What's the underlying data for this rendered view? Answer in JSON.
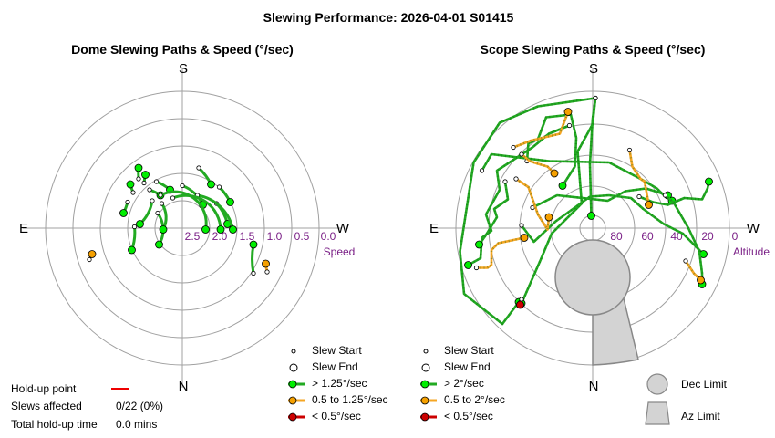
{
  "title": "Slewing Performance: 2026-04-01 S01415",
  "colors": {
    "fast": "#22aa22",
    "fast_marker": "#00ee00",
    "medium": "#f5a623",
    "medium_marker": "#f5a000",
    "slow": "#cc0000",
    "slow_marker": "#cc0000",
    "holdup": "#ee0000",
    "limit_fill": "#d3d3d3",
    "limit_stroke": "#888888",
    "ring": "#a0a0a0",
    "axis_label": "#7a1f86"
  },
  "stats": {
    "holdup_label": "Hold-up point",
    "slews_affected_label": "Slews affected",
    "slews_affected_value": "0/22 (0%)",
    "total_holdup_label": "Total hold-up time",
    "total_holdup_value": "0.0 mins"
  },
  "chart_data": [
    {
      "type": "polar",
      "title": "Dome Slewing Paths & Speed (°/sec)",
      "directions": {
        "top": "S",
        "bottom": "N",
        "left": "E",
        "right": "W"
      },
      "radial_axis": "Speed",
      "radial_ticks": [
        "2.5",
        "2.0",
        "1.5",
        "1.0",
        "0.5",
        "0.0"
      ],
      "legend": [
        {
          "label": "Slew Start",
          "kind": "start"
        },
        {
          "label": "Slew End",
          "kind": "end"
        },
        {
          "label": "> 1.25°/sec",
          "kind": "fast"
        },
        {
          "label": "0.5 to 1.25°/sec",
          "kind": "medium"
        },
        {
          "label": "< 0.5°/sec",
          "kind": "slow"
        }
      ],
      "slews": [
        {
          "speed": "fast",
          "start": [
            -0.36,
            0.26
          ],
          "end": [
            -0.38,
            0.32
          ]
        },
        {
          "speed": "fast",
          "start": [
            -0.28,
            0.33
          ],
          "end": [
            -0.27,
            0.39
          ]
        },
        {
          "speed": "fast",
          "start": [
            -0.24,
            0.28
          ],
          "end": [
            -0.16,
            0.24
          ]
        },
        {
          "speed": "fast",
          "start": [
            -0.32,
            0.36
          ],
          "end": [
            -0.32,
            0.44
          ]
        },
        {
          "speed": "fast",
          "start": [
            -0.19,
            0.34
          ],
          "end": [
            -0.09,
            0.28
          ]
        },
        {
          "speed": "fast",
          "start": [
            0.12,
            0.44
          ],
          "end": [
            0.21,
            0.32
          ]
        },
        {
          "speed": "fast",
          "start": [
            0.27,
            0.3
          ],
          "end": [
            0.35,
            0.19
          ]
        },
        {
          "speed": "fast",
          "start": [
            0.0,
            0.31
          ],
          "end": [
            0.15,
            0.17
          ]
        },
        {
          "speed": "fast",
          "start": [
            -0.4,
            0.19
          ],
          "end": [
            -0.43,
            0.11
          ]
        },
        {
          "speed": "fast",
          "start": [
            -0.35,
            0.01
          ],
          "end": [
            -0.37,
            -0.16
          ]
        },
        {
          "speed": "fast",
          "start": [
            -0.18,
            0.11
          ],
          "end": [
            -0.17,
            -0.12
          ]
        },
        {
          "speed": "fast",
          "start": [
            0.25,
            0.18
          ],
          "end": [
            0.33,
            0.03
          ]
        },
        {
          "speed": "fast",
          "start": [
            0.11,
            0.24
          ],
          "end": [
            0.37,
            -0.01
          ]
        },
        {
          "speed": "fast",
          "start": [
            -0.07,
            0.22
          ],
          "end": [
            0.28,
            -0.01
          ]
        },
        {
          "speed": "fast",
          "start": [
            -0.16,
            0.24
          ],
          "end": [
            0.17,
            -0.01
          ]
        },
        {
          "speed": "fast",
          "start": [
            -0.22,
            0.2
          ],
          "end": [
            -0.31,
            0.03
          ]
        },
        {
          "speed": "fast",
          "start": [
            -0.15,
            0.18
          ],
          "end": [
            -0.14,
            -0.01
          ]
        },
        {
          "speed": "fast",
          "start": [
            0.52,
            -0.33
          ],
          "end": [
            0.52,
            -0.12
          ]
        },
        {
          "speed": "medium",
          "start": [
            -0.68,
            -0.23
          ],
          "end": [
            -0.66,
            -0.19
          ]
        },
        {
          "speed": "medium",
          "start": [
            0.62,
            -0.32
          ],
          "end": [
            0.61,
            -0.26
          ]
        }
      ]
    },
    {
      "type": "polar",
      "title": "Scope Slewing Paths & Speed (°/sec)",
      "directions": {
        "top": "S",
        "bottom": "N",
        "left": "E",
        "right": "W"
      },
      "radial_axis": "Altitude",
      "radial_ticks": [
        "80",
        "60",
        "40",
        "20",
        "0"
      ],
      "legend": [
        {
          "label": "Slew Start",
          "kind": "start"
        },
        {
          "label": "Slew End",
          "kind": "end"
        },
        {
          "label": "> 2°/sec",
          "kind": "fast"
        },
        {
          "label": "0.5 to 2°/sec",
          "kind": "medium"
        },
        {
          "label": "< 0.5°/sec",
          "kind": "slow"
        }
      ],
      "limits": [
        {
          "label": "Dec Limit",
          "kind": "dec"
        },
        {
          "label": "Az Limit",
          "kind": "az"
        }
      ],
      "slews": [
        {
          "speed": "fast",
          "path": [
            [
              0.02,
              0.95
            ],
            [
              -0.4,
              0.89
            ],
            [
              -0.68,
              0.77
            ],
            [
              -0.87,
              0.48
            ],
            [
              -0.97,
              -0.17
            ],
            [
              -0.94,
              -0.48
            ],
            [
              -0.66,
              -0.7
            ],
            [
              -0.54,
              -0.54
            ]
          ]
        },
        {
          "speed": "fast",
          "path": [
            [
              0.02,
              0.95
            ],
            [
              0.0,
              0.76
            ],
            [
              -0.11,
              0.56
            ],
            [
              -0.08,
              0.18
            ],
            [
              -0.3,
              -0.04
            ],
            [
              -0.38,
              -0.23
            ],
            [
              -0.52,
              -0.55
            ]
          ]
        },
        {
          "speed": "fast",
          "path": [
            [
              0.02,
              0.95
            ],
            [
              0.0,
              0.8
            ],
            [
              -0.02,
              0.47
            ],
            [
              -0.01,
              0.09
            ]
          ]
        },
        {
          "speed": "fast",
          "path": [
            [
              -0.17,
              0.75
            ],
            [
              -0.32,
              0.69
            ],
            [
              -0.44,
              0.59
            ],
            [
              -0.7,
              0.42
            ],
            [
              -0.68,
              0.28
            ],
            [
              -0.78,
              0.1
            ],
            [
              -0.74,
              -0.02
            ],
            [
              -0.81,
              -0.07
            ],
            [
              -0.82,
              -0.22
            ],
            [
              -0.91,
              -0.27
            ]
          ]
        },
        {
          "speed": "fast",
          "path": [
            [
              -0.81,
              0.42
            ],
            [
              -0.74,
              0.54
            ],
            [
              -0.32,
              0.49
            ],
            [
              0.12,
              0.48
            ],
            [
              0.35,
              0.36
            ],
            [
              0.47,
              0.29
            ],
            [
              0.52,
              0.24
            ],
            [
              0.58,
              0.2
            ]
          ]
        },
        {
          "speed": "fast",
          "path": [
            [
              -0.44,
              0.15
            ],
            [
              -0.26,
              0.24
            ],
            [
              0.11,
              0.2
            ],
            [
              0.24,
              0.27
            ],
            [
              0.39,
              0.29
            ],
            [
              0.55,
              0.24
            ]
          ]
        },
        {
          "speed": "fast",
          "path": [
            [
              -0.64,
              0.34
            ],
            [
              -0.62,
              0.21
            ],
            [
              -0.72,
              0.14
            ],
            [
              -0.7,
              0.08
            ],
            [
              -0.78,
              -0.05
            ],
            [
              -0.83,
              -0.12
            ]
          ]
        },
        {
          "speed": "fast",
          "path": [
            [
              0.34,
              0.23
            ],
            [
              0.44,
              0.19
            ],
            [
              0.55,
              0.17
            ],
            [
              0.67,
              0.22
            ],
            [
              0.8,
              0.21
            ],
            [
              0.84,
              0.29
            ],
            [
              0.85,
              0.34
            ]
          ]
        },
        {
          "speed": "fast",
          "path": [
            [
              -0.52,
              0.02
            ],
            [
              -0.43,
              -0.1
            ],
            [
              -0.27,
              0.05
            ],
            [
              -0.02,
              0.23
            ],
            [
              0.12,
              0.24
            ],
            [
              0.28,
              0.22
            ],
            [
              0.37,
              0.14
            ],
            [
              0.52,
              0.03
            ],
            [
              0.66,
              -0.04
            ],
            [
              0.74,
              -0.12
            ],
            [
              0.81,
              -0.19
            ]
          ]
        },
        {
          "speed": "fast",
          "path": [
            [
              0.53,
              0.24
            ],
            [
              0.59,
              0.19
            ],
            [
              0.7,
              0.0
            ],
            [
              0.78,
              -0.17
            ],
            [
              0.8,
              -0.33
            ],
            [
              0.8,
              -0.41
            ]
          ]
        },
        {
          "speed": "fast",
          "path": [
            [
              -0.48,
              0.49
            ],
            [
              -0.47,
              0.62
            ],
            [
              -0.4,
              0.65
            ],
            [
              -0.34,
              0.81
            ],
            [
              -0.16,
              0.83
            ],
            [
              -0.12,
              0.66
            ],
            [
              -0.13,
              0.45
            ],
            [
              -0.22,
              0.31
            ]
          ]
        },
        {
          "speed": "medium",
          "path": [
            [
              -0.58,
              0.59
            ],
            [
              -0.45,
              0.64
            ],
            [
              -0.24,
              0.69
            ],
            [
              -0.18,
              0.85
            ]
          ]
        },
        {
          "speed": "medium",
          "path": [
            [
              -0.56,
              0.36
            ],
            [
              -0.47,
              0.3
            ],
            [
              -0.4,
              0.1
            ],
            [
              -0.33,
              -0.01
            ],
            [
              -0.32,
              0.08
            ]
          ]
        },
        {
          "speed": "medium",
          "path": [
            [
              -0.52,
              0.54
            ],
            [
              -0.46,
              0.49
            ],
            [
              -0.4,
              0.47
            ],
            [
              -0.33,
              0.45
            ],
            [
              -0.28,
              0.4
            ]
          ]
        },
        {
          "speed": "medium",
          "path": [
            [
              0.27,
              0.57
            ],
            [
              0.29,
              0.45
            ],
            [
              0.35,
              0.36
            ],
            [
              0.38,
              0.34
            ],
            [
              0.41,
              0.17
            ]
          ]
        },
        {
          "speed": "medium",
          "path": [
            [
              -0.85,
              -0.29
            ],
            [
              -0.77,
              -0.29
            ],
            [
              -0.74,
              -0.27
            ],
            [
              -0.74,
              -0.16
            ],
            [
              -0.69,
              -0.11
            ],
            [
              -0.5,
              -0.07
            ]
          ]
        },
        {
          "speed": "medium",
          "path": [
            [
              0.68,
              -0.24
            ],
            [
              0.74,
              -0.33
            ],
            [
              0.79,
              -0.38
            ]
          ]
        },
        {
          "speed": "slow",
          "path": [
            [
              -0.52,
              -0.52
            ],
            [
              -0.53,
              -0.56
            ]
          ]
        }
      ]
    }
  ]
}
